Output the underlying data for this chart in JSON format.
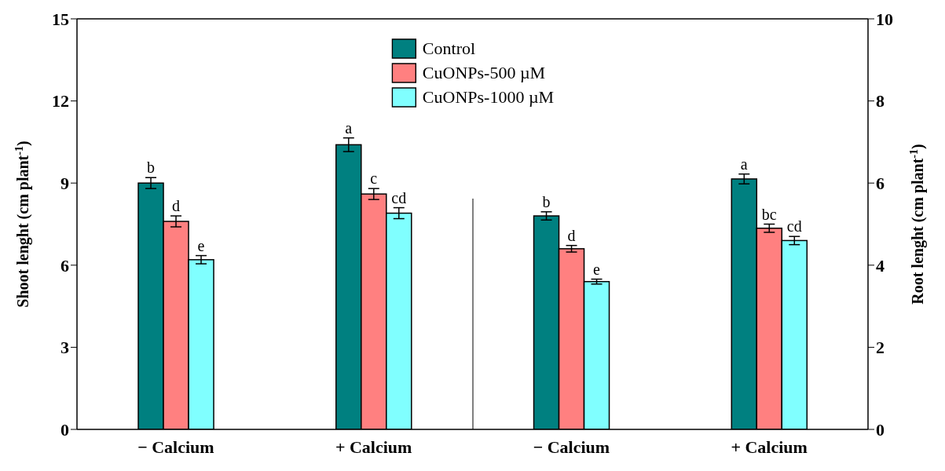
{
  "chart_data": {
    "type": "bar",
    "categories": [
      "− Calcium",
      "+ Calcium",
      "− Calcium",
      "+ Calcium"
    ],
    "ylabel": "Shoot lenght  (cm plant$^{-1}$)",
    "y2label": "Root lenght (cm plant$^{-1}$)",
    "ylim": [
      0,
      15
    ],
    "yticks": [
      0,
      3,
      6,
      9,
      12,
      15
    ],
    "y2lim": [
      0,
      10
    ],
    "y2ticks": [
      0,
      2,
      4,
      6,
      8,
      10
    ],
    "legend": "top",
    "series": [
      {
        "name": "Control",
        "color": "#008080",
        "values": [
          9.0,
          10.4,
          null,
          null
        ],
        "errors": [
          0.2,
          0.25,
          null,
          null
        ],
        "value_labels": [
          "b",
          "a",
          null,
          null
        ]
      },
      {
        "name": "CuONPs-500 µM",
        "color": "#ff8080",
        "values": [
          7.6,
          8.6,
          null,
          null
        ],
        "errors": [
          0.2,
          0.2,
          null,
          null
        ],
        "value_labels": [
          "d",
          "c",
          null,
          null
        ]
      },
      {
        "name": "CuONPs-1000 µM",
        "color": "#80ffff",
        "values": [
          6.2,
          7.9,
          null,
          null
        ],
        "errors": [
          0.15,
          0.2,
          null,
          null
        ],
        "value_labels": [
          "e",
          "cd",
          null,
          null
        ]
      },
      {
        "color": "#008080",
        "axis": "y2",
        "values": [
          null,
          null,
          5.2,
          6.1
        ],
        "errors": [
          null,
          null,
          0.1,
          0.12
        ],
        "value_labels": [
          null,
          null,
          "b",
          "a"
        ]
      },
      {
        "color": "#ff8080",
        "axis": "y2",
        "values": [
          null,
          null,
          4.4,
          4.9
        ],
        "errors": [
          null,
          null,
          0.08,
          0.1
        ],
        "value_labels": [
          null,
          null,
          "d",
          "bc"
        ]
      },
      {
        "color": "#80ffff",
        "axis": "y2",
        "values": [
          null,
          null,
          3.6,
          4.6
        ],
        "errors": [
          null,
          null,
          0.06,
          0.1
        ],
        "value_labels": [
          null,
          null,
          "e",
          "cd"
        ]
      }
    ]
  }
}
